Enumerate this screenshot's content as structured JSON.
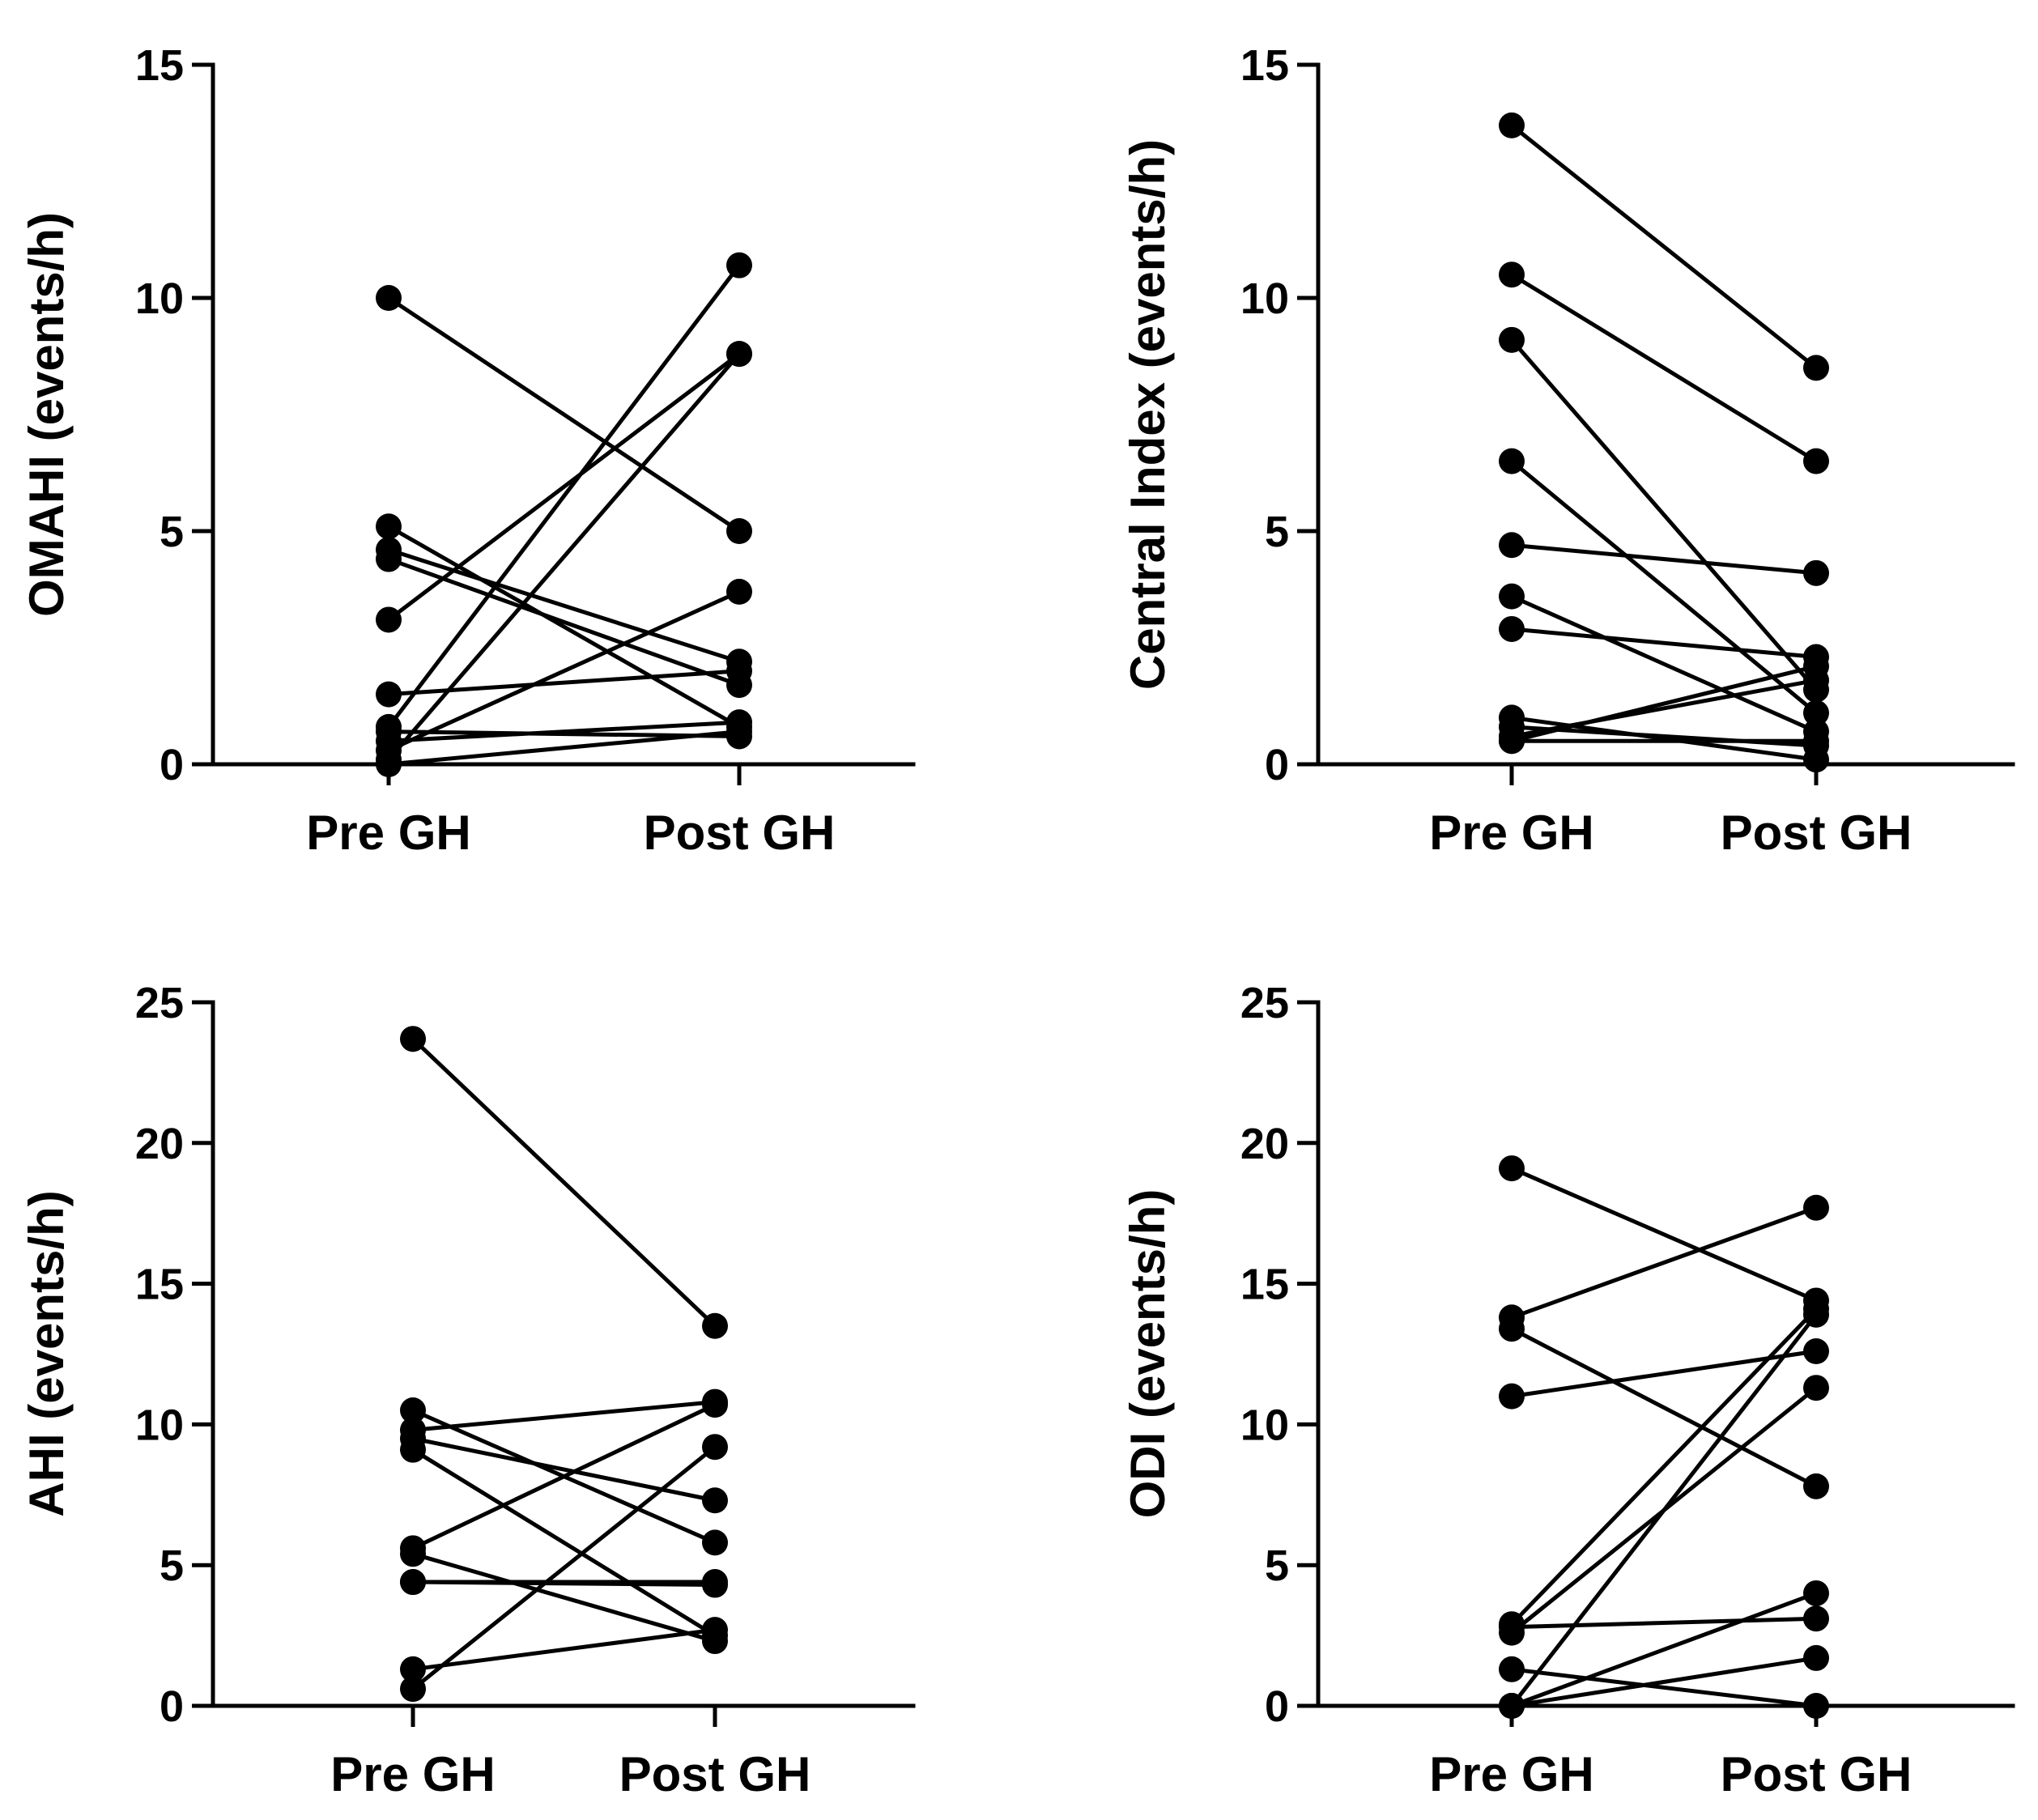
{
  "chart_data": [
    {
      "type": "scatter",
      "subtype": "paired-before-after",
      "categories": [
        "Pre GH",
        "Post GH"
      ],
      "ylabel": "OMAHI (events/h)",
      "ylim": [
        0,
        15
      ],
      "yticks": [
        0,
        5,
        10,
        15
      ],
      "pairs": [
        [
          10.0,
          5.0
        ],
        [
          5.1,
          0.8
        ],
        [
          4.4,
          1.7
        ],
        [
          4.6,
          2.2
        ],
        [
          3.1,
          8.8
        ],
        [
          1.5,
          2.0
        ],
        [
          0.8,
          10.7
        ],
        [
          0.7,
          0.6
        ],
        [
          0.5,
          0.9
        ],
        [
          0.3,
          3.7
        ],
        [
          0.1,
          8.8
        ],
        [
          0.0,
          0.7
        ]
      ]
    },
    {
      "type": "scatter",
      "subtype": "paired-before-after",
      "categories": [
        "Pre GH",
        "Post GH"
      ],
      "ylabel": "Central Index (events/h)",
      "ylim": [
        0,
        15
      ],
      "yticks": [
        0,
        5,
        10,
        15
      ],
      "pairs": [
        [
          13.7,
          8.5
        ],
        [
          10.5,
          6.5
        ],
        [
          9.1,
          1.6
        ],
        [
          6.5,
          1.1
        ],
        [
          4.7,
          4.1
        ],
        [
          3.6,
          0.7
        ],
        [
          2.9,
          2.3
        ],
        [
          1.0,
          0.1
        ],
        [
          0.8,
          0.4
        ],
        [
          0.6,
          1.8
        ],
        [
          0.5,
          2.1
        ],
        [
          0.5,
          0.5
        ]
      ]
    },
    {
      "type": "scatter",
      "subtype": "paired-before-after",
      "categories": [
        "Pre GH",
        "Post GH"
      ],
      "ylabel": "AHI (events/h)",
      "ylim": [
        0,
        25
      ],
      "yticks": [
        0,
        5,
        10,
        15,
        20,
        25
      ],
      "pairs": [
        [
          23.7,
          13.5
        ],
        [
          10.5,
          5.8
        ],
        [
          9.8,
          10.8
        ],
        [
          9.5,
          7.3
        ],
        [
          9.1,
          2.5
        ],
        [
          5.6,
          10.7
        ],
        [
          5.4,
          2.3
        ],
        [
          4.4,
          4.4
        ],
        [
          4.4,
          4.3
        ],
        [
          1.3,
          2.7
        ],
        [
          0.6,
          9.2
        ]
      ]
    },
    {
      "type": "scatter",
      "subtype": "paired-before-after",
      "categories": [
        "Pre GH",
        "Post GH"
      ],
      "ylabel": "ODI (events/h)",
      "ylim": [
        0,
        25
      ],
      "yticks": [
        0,
        5,
        10,
        15,
        20,
        25
      ],
      "pairs": [
        [
          19.1,
          14.4
        ],
        [
          13.8,
          17.7
        ],
        [
          13.4,
          7.8
        ],
        [
          11.0,
          12.6
        ],
        [
          2.9,
          14.1
        ],
        [
          2.8,
          3.1
        ],
        [
          2.6,
          11.3
        ],
        [
          1.3,
          0.0
        ],
        [
          0.0,
          13.9
        ],
        [
          0.0,
          4.0
        ],
        [
          0.0,
          1.7
        ]
      ]
    }
  ]
}
